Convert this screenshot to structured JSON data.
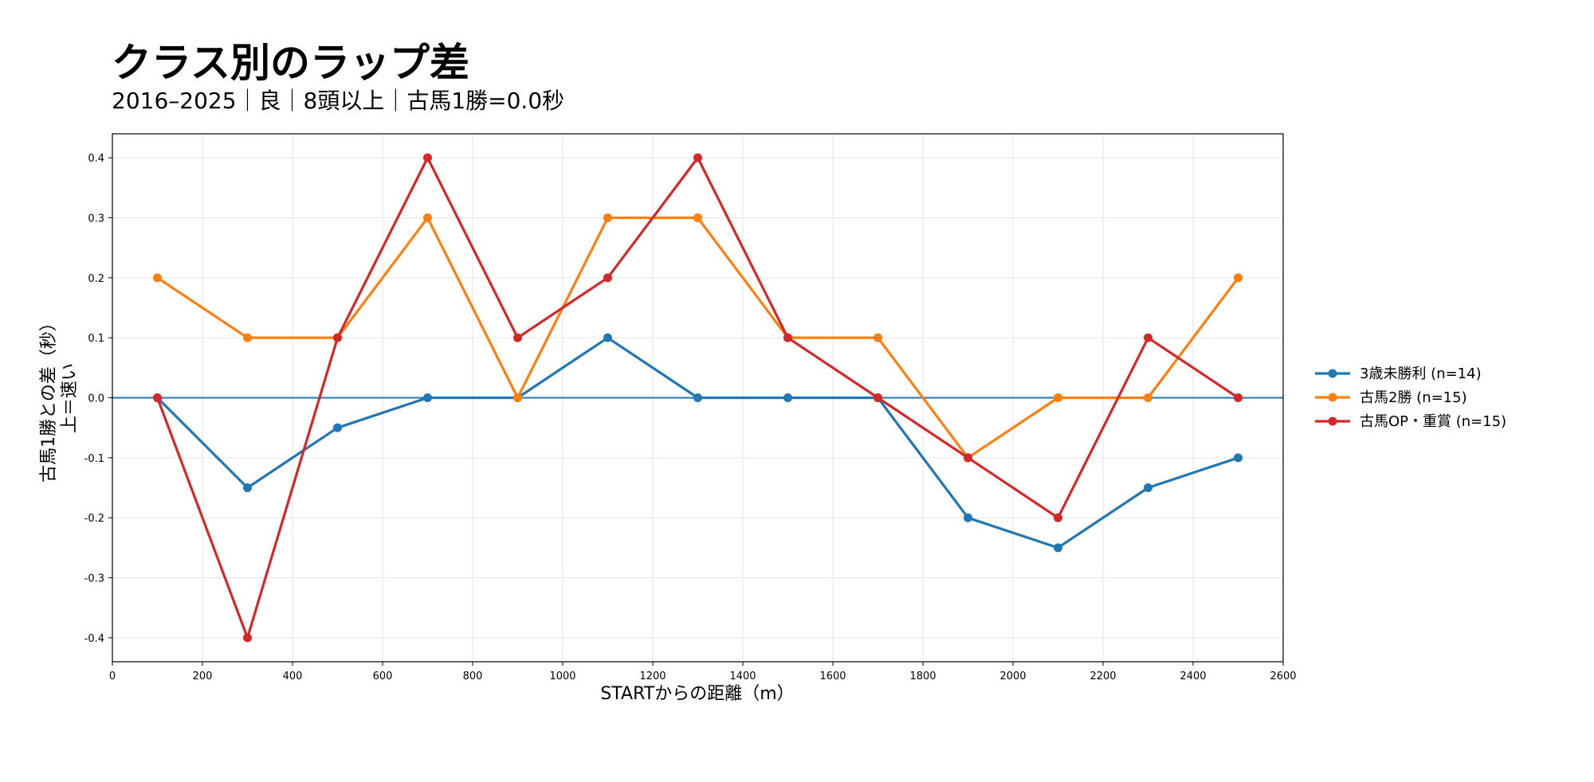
{
  "chart_data": {
    "type": "line",
    "title": "クラス別のラップ差",
    "subtitle": "2016–2025｜良｜8頭以上｜古馬1勝=0.0秒",
    "xlabel": "STARTからの距離（m）",
    "ylabel": "古馬1勝との差（秒）",
    "ylabel_note": "上＝速い",
    "xlim": [
      0,
      2600
    ],
    "ylim": [
      -0.44,
      0.44
    ],
    "x_ticks": [
      0,
      200,
      400,
      600,
      800,
      1000,
      1200,
      1400,
      1600,
      1800,
      2000,
      2200,
      2400,
      2600
    ],
    "y_ticks": [
      -0.4,
      -0.3,
      -0.2,
      -0.1,
      0.0,
      0.1,
      0.2,
      0.3,
      0.4
    ],
    "y_tick_labels": [
      "-0.4",
      "-0.3",
      "-0.2",
      "-0.1",
      "0.0",
      "0.1",
      "0.2",
      "0.3",
      "0.4"
    ],
    "grid": true,
    "legend_position": "right",
    "reference_line": {
      "y": 0.0,
      "color": "#1f77b4"
    },
    "x": [
      100,
      300,
      500,
      700,
      900,
      1100,
      1300,
      1500,
      1700,
      1900,
      2100,
      2300,
      2500
    ],
    "series": [
      {
        "name": "3歳未勝利 (n=14)",
        "color": "#1f77b4",
        "values": [
          0.0,
          -0.15,
          -0.05,
          0.0,
          0.0,
          0.1,
          0.0,
          0.0,
          0.0,
          -0.2,
          -0.25,
          -0.15,
          -0.1
        ]
      },
      {
        "name": "古馬2勝 (n=15)",
        "color": "#ff7f0e",
        "values": [
          0.2,
          0.1,
          0.1,
          0.3,
          0.0,
          0.3,
          0.3,
          0.1,
          0.1,
          -0.1,
          0.0,
          0.0,
          0.2
        ]
      },
      {
        "name": "古馬OP・重賞 (n=15)",
        "color": "#d62728",
        "values": [
          0.0,
          -0.4,
          0.1,
          0.4,
          0.1,
          0.2,
          0.4,
          0.1,
          0.0,
          -0.1,
          -0.2,
          0.1,
          0.0
        ]
      }
    ]
  }
}
